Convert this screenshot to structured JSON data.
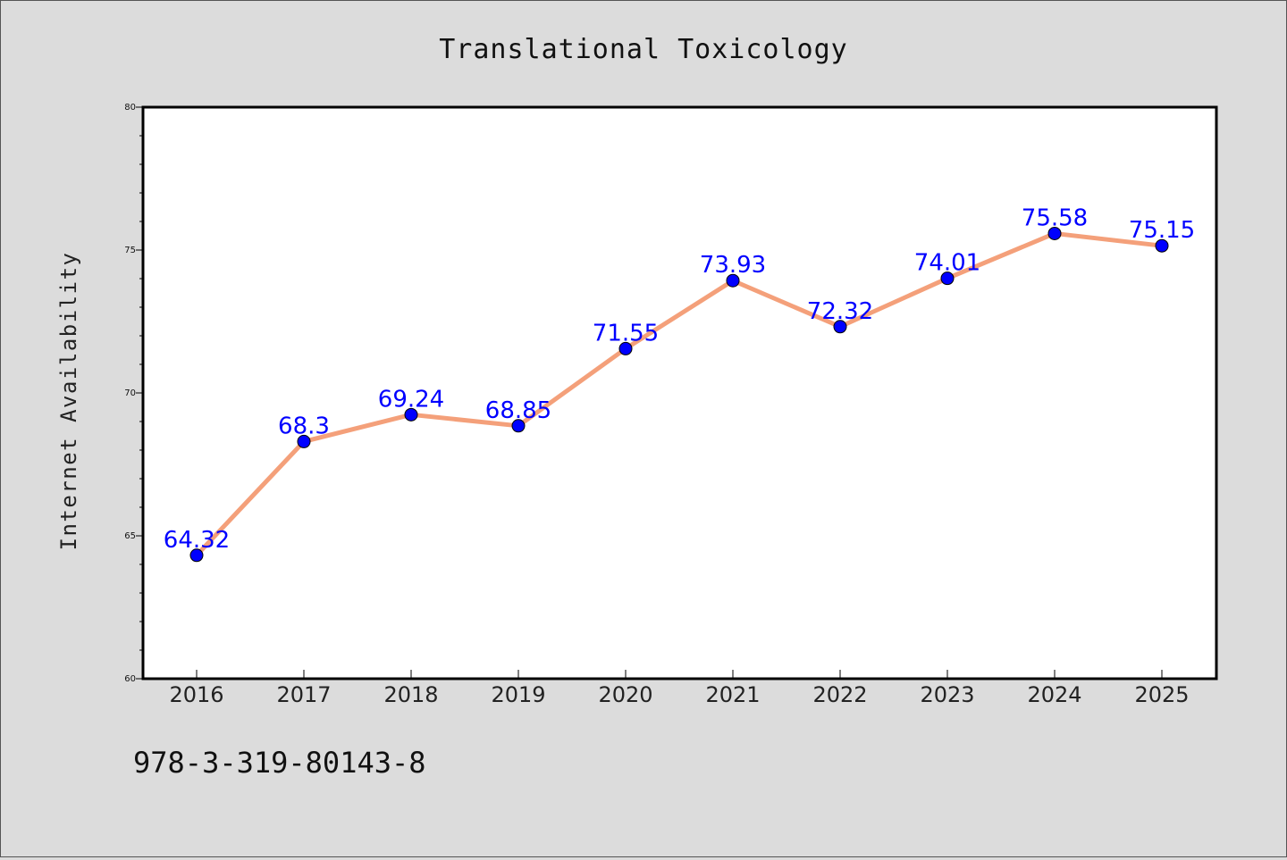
{
  "colors": {
    "background": "#dcdcdc",
    "plot_background": "#ffffff",
    "line": "#f4a07a",
    "marker": "#0000ff",
    "data_label": "#0000ff"
  },
  "footer": {
    "text": "978-3-319-80143-8"
  },
  "chart_data": {
    "type": "line",
    "title": "Translational Toxicology",
    "xlabel": "",
    "ylabel": "Internet Availability",
    "categories": [
      "2016",
      "2017",
      "2018",
      "2019",
      "2020",
      "2021",
      "2022",
      "2023",
      "2024",
      "2025"
    ],
    "series": [
      {
        "values": [
          64.32,
          68.3,
          69.24,
          68.85,
          71.55,
          73.93,
          72.32,
          74.01,
          75.58,
          75.15
        ],
        "labels": [
          "64.32",
          "68.3",
          "69.24",
          "68.85",
          "71.55",
          "73.93",
          "72.32",
          "74.01",
          "75.58",
          "75.15"
        ]
      }
    ],
    "ylim": [
      60,
      80
    ],
    "yticks": [
      "60",
      "65",
      "70",
      "75",
      "80"
    ],
    "grid": false,
    "legend": "none"
  }
}
